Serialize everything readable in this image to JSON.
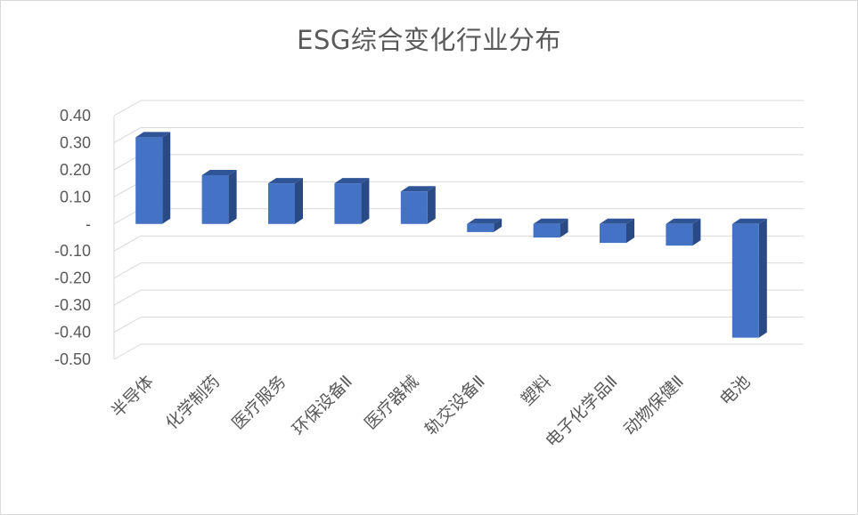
{
  "chart_data": {
    "type": "bar",
    "title": "ESG综合变化行业分布",
    "categories": [
      "半导体",
      "化学制药",
      "医疗服务",
      "环保设备Ⅱ",
      "医疗器械",
      "轨交设备Ⅱ",
      "塑料",
      "电子化学品Ⅱ",
      "动物保健Ⅱ",
      "电池"
    ],
    "values": [
      0.32,
      0.18,
      0.15,
      0.15,
      0.12,
      -0.03,
      -0.05,
      -0.07,
      -0.08,
      -0.42
    ],
    "ylim": [
      -0.5,
      0.4
    ],
    "yticks": [
      0.4,
      0.3,
      0.2,
      0.1,
      0,
      -0.1,
      -0.2,
      -0.3,
      -0.4,
      -0.5
    ],
    "ytick_labels": [
      "0.40",
      "0.30",
      "0.20",
      "0.10",
      "-",
      "-0.10",
      "-0.20",
      "-0.30",
      "-0.40",
      "-0.50"
    ],
    "xlabel": "",
    "ylabel": "",
    "grid": true,
    "legend": "none",
    "style": "3d-column",
    "colors": {
      "front": "#4472c4",
      "side": "#2a4a85",
      "top": "#2f5597",
      "grid": "#d9d9d9",
      "text": "#595959"
    }
  }
}
